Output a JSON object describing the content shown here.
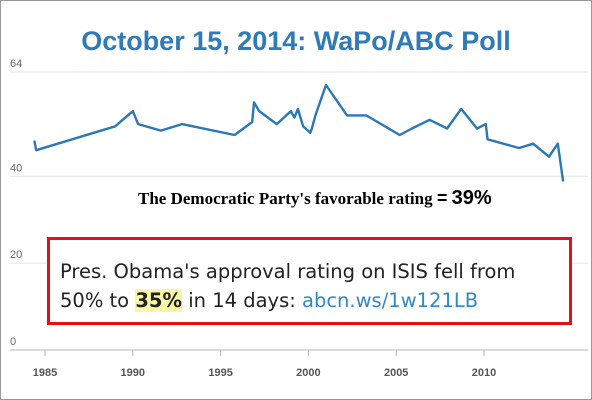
{
  "title": "October 15, 2014: WaPo/ABC Poll",
  "dem_caption": {
    "text": "The Democratic Party's favorable rating",
    "equals": "=",
    "value": "39%"
  },
  "isis_box": {
    "line1": "Pres. Obama's approval rating on ISIS fell from",
    "line2_pre": "50% to ",
    "line2_highlight": "35%",
    "line2_post": " in 14 days: ",
    "link": "abcn.ws/1w121LB",
    "border_color": "#e1111a",
    "highlight_color": "#f9f6a6",
    "link_color": "#2f88c8"
  },
  "chart_data": {
    "type": "line",
    "title": "October 15, 2014: WaPo/ABC Poll",
    "xlabel": "",
    "ylabel": "",
    "xlim": [
      1984,
      2015
    ],
    "ylim": [
      0,
      64
    ],
    "x_ticks": [
      1985,
      1990,
      1995,
      2000,
      2005,
      2010
    ],
    "y_ticks": [
      0,
      20,
      40,
      64
    ],
    "grid": "horizontal",
    "line_color": "#2a78b4",
    "series": [
      {
        "x": [
          1984.4,
          1984.5,
          1989,
          1990,
          1990.3,
          1991.6,
          1992.8,
          1995.8,
          1996.8,
          1996.9,
          1997.2,
          1998.2,
          1999,
          1999.2,
          1999.4,
          1999.7,
          2000.1,
          2000.2,
          2000.4,
          2001,
          2002.2,
          2003.3,
          2005.2,
          2005.9,
          2006.9,
          2007.9,
          2008.7,
          2009.6,
          2010.1,
          2010.2,
          2012,
          2012.8,
          2013.7,
          2014.2,
          2014.5
        ],
        "y": [
          48,
          46,
          51.5,
          55,
          52,
          50.5,
          52,
          49.5,
          52.5,
          57,
          55,
          52,
          55,
          53.5,
          55.5,
          51.5,
          50,
          51,
          54,
          61,
          54,
          54,
          49.5,
          51,
          53,
          51,
          55.5,
          51,
          52,
          48.5,
          46.5,
          47.5,
          44.5,
          47.5,
          39
        ]
      }
    ]
  }
}
